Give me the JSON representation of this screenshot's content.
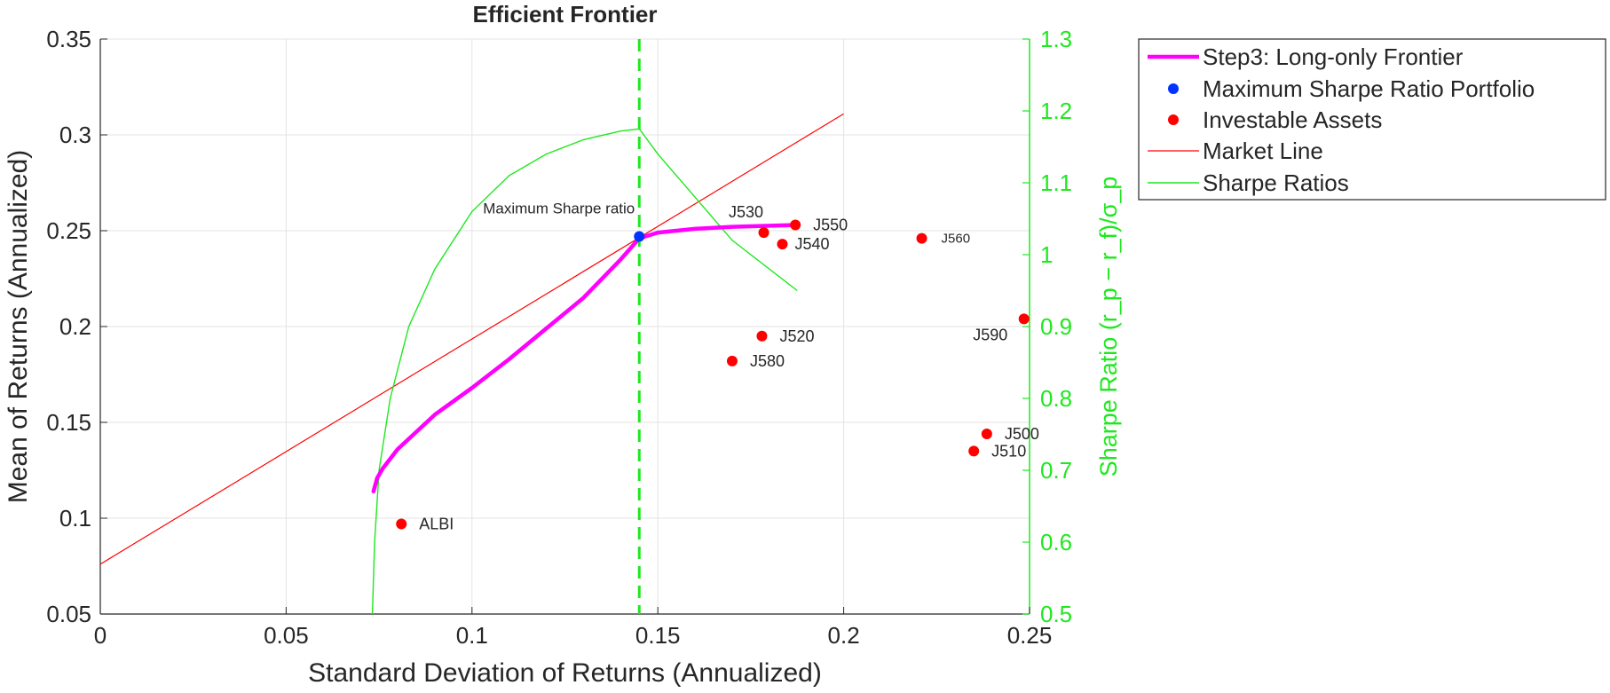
{
  "chart_data": {
    "type": "scatter",
    "title": "Efficient  Frontier",
    "xlabel": "Standard Deviation of Returns (Annualized)",
    "ylabel": "Mean of Returns (Annualized)",
    "y2label": "Sharpe Ratio (r_p − r_f)/σ_p",
    "xlim": [
      0,
      0.25
    ],
    "ylim": [
      0.05,
      0.35
    ],
    "y2lim": [
      0.5,
      1.3
    ],
    "xticks": [
      "0",
      "0.05",
      "0.1",
      "0.15",
      "0.2",
      "0.25"
    ],
    "yticks": [
      "0.05",
      "0.1",
      "0.15",
      "0.2",
      "0.25",
      "0.3",
      "0.35"
    ],
    "y2ticks": [
      "0.5",
      "0.6",
      "0.7",
      "0.8",
      "0.9",
      "1",
      "1.1",
      "1.2",
      "1.3"
    ],
    "grid": true,
    "legend_position": "outside-top-right",
    "colors": {
      "frontier": "#ff00ff",
      "max_sharpe": "#0033ff",
      "assets": "#ff0000",
      "market_line": "#ff0000",
      "sharpe": "#1ee81e",
      "vline": "#1ee81e"
    },
    "series": [
      {
        "name": "Step3: Long-only Frontier",
        "kind": "line",
        "axis": "left",
        "points": [
          [
            0.0735,
            0.114
          ],
          [
            0.0745,
            0.121
          ],
          [
            0.076,
            0.126
          ],
          [
            0.08,
            0.136
          ],
          [
            0.09,
            0.154
          ],
          [
            0.1,
            0.168
          ],
          [
            0.11,
            0.183
          ],
          [
            0.12,
            0.199
          ],
          [
            0.13,
            0.215
          ],
          [
            0.14,
            0.235
          ],
          [
            0.145,
            0.246
          ],
          [
            0.15,
            0.249
          ],
          [
            0.16,
            0.251
          ],
          [
            0.17,
            0.252
          ],
          [
            0.187,
            0.253
          ]
        ]
      },
      {
        "name": "Maximum Sharpe Ratio Portfolio",
        "kind": "point",
        "axis": "left",
        "points": [
          [
            0.145,
            0.247
          ]
        ]
      },
      {
        "name": "Investable Assets",
        "kind": "scatter",
        "axis": "left",
        "points": [
          {
            "label": "ALBI",
            "x": 0.081,
            "y": 0.097
          },
          {
            "label": "J530",
            "x": 0.1785,
            "y": 0.249
          },
          {
            "label": "J550",
            "x": 0.187,
            "y": 0.253
          },
          {
            "label": "J540",
            "x": 0.1835,
            "y": 0.243
          },
          {
            "label": "J560",
            "x": 0.221,
            "y": 0.246
          },
          {
            "label": "J520",
            "x": 0.178,
            "y": 0.195
          },
          {
            "label": "J580",
            "x": 0.17,
            "y": 0.182
          },
          {
            "label": "J590",
            "x": 0.2485,
            "y": 0.204
          },
          {
            "label": "J500",
            "x": 0.2385,
            "y": 0.144
          },
          {
            "label": "J510",
            "x": 0.235,
            "y": 0.135
          }
        ]
      },
      {
        "name": "Market Line",
        "kind": "line",
        "axis": "left",
        "points": [
          [
            0,
            0.076
          ],
          [
            0.2,
            0.311
          ]
        ]
      },
      {
        "name": "Sharpe Ratios",
        "kind": "line",
        "axis": "right",
        "points": [
          [
            0.0732,
            0.5
          ],
          [
            0.0738,
            0.6
          ],
          [
            0.075,
            0.7
          ],
          [
            0.078,
            0.8
          ],
          [
            0.083,
            0.9
          ],
          [
            0.09,
            0.98
          ],
          [
            0.1,
            1.06
          ],
          [
            0.11,
            1.11
          ],
          [
            0.12,
            1.14
          ],
          [
            0.13,
            1.16
          ],
          [
            0.14,
            1.172
          ],
          [
            0.145,
            1.175
          ],
          [
            0.15,
            1.14
          ],
          [
            0.16,
            1.08
          ],
          [
            0.17,
            1.02
          ],
          [
            0.1875,
            0.95
          ]
        ]
      }
    ],
    "vline": {
      "x": 0.145
    },
    "annotation": {
      "text": "Maximum Sharpe ratio",
      "x": 0.145,
      "y": 0.247
    }
  }
}
